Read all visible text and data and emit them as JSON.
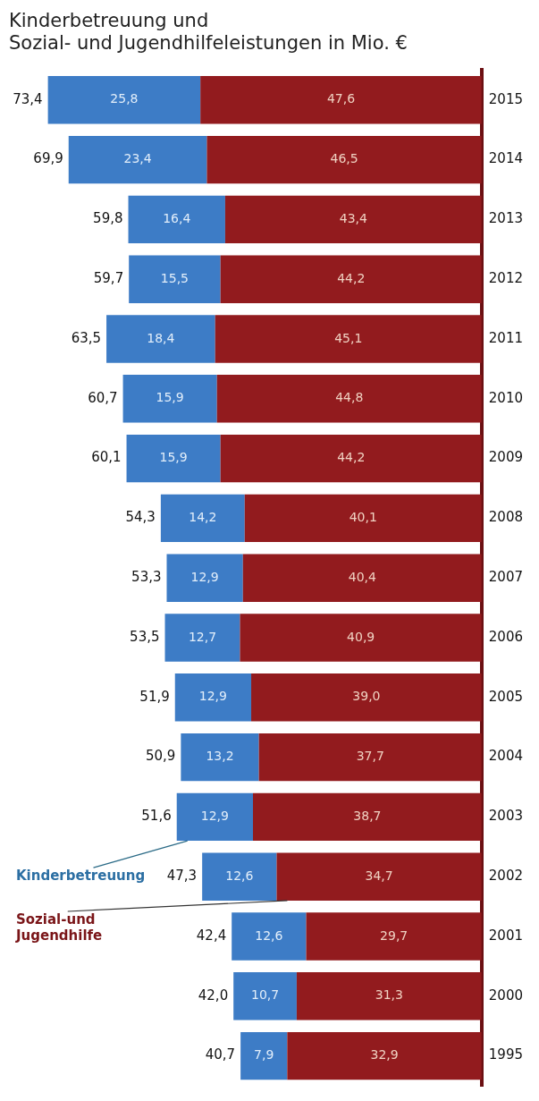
{
  "chart_data": {
    "type": "bar",
    "stacked": true,
    "orientation": "horizontal",
    "title": "Kinderbetreuung und\nSozial- und Jugendhilfeleistungen in Mio. €",
    "categories": [
      "2015",
      "2014",
      "2013",
      "2012",
      "2011",
      "2010",
      "2009",
      "2008",
      "2007",
      "2006",
      "2005",
      "2004",
      "2003",
      "2002",
      "2001",
      "2000",
      "1995"
    ],
    "series": [
      {
        "name": "Sozial-und\nJugendhilfe",
        "color": "#921b1e",
        "values": [
          47.6,
          46.5,
          43.4,
          44.2,
          45.1,
          44.8,
          44.2,
          40.1,
          40.4,
          40.9,
          39.0,
          37.7,
          38.7,
          34.7,
          29.7,
          31.3,
          32.9
        ],
        "value_labels": [
          "47,6",
          "46,5",
          "43,4",
          "44,2",
          "45,1",
          "44,8",
          "44,2",
          "40,1",
          "40,4",
          "40,9",
          "39,0",
          "37,7",
          "38,7",
          "34,7",
          "29,7",
          "31,3",
          "32,9"
        ]
      },
      {
        "name": "Kinderbetreuung",
        "color": "#3d7cc6",
        "values": [
          25.8,
          23.4,
          16.4,
          15.5,
          18.4,
          15.9,
          15.9,
          14.2,
          12.9,
          12.7,
          12.9,
          13.2,
          12.9,
          12.6,
          12.6,
          10.7,
          7.9
        ],
        "value_labels": [
          "25,8",
          "23,4",
          "16,4",
          "15,5",
          "18,4",
          "15,9",
          "15,9",
          "14,2",
          "12,9",
          "12,7",
          "12,9",
          "13,2",
          "12,9",
          "12,6",
          "12,6",
          "10,7",
          "7,9"
        ]
      }
    ],
    "legend": false,
    "totals": [
      "73,4",
      "69,9",
      "59,8",
      "59,7",
      "63,5",
      "60,7",
      "60,1",
      "54,3",
      "53,3",
      "53,5",
      "51,9",
      "50,9",
      "51,6",
      "47,3",
      "42,4",
      "42,0",
      "40,7"
    ]
  }
}
